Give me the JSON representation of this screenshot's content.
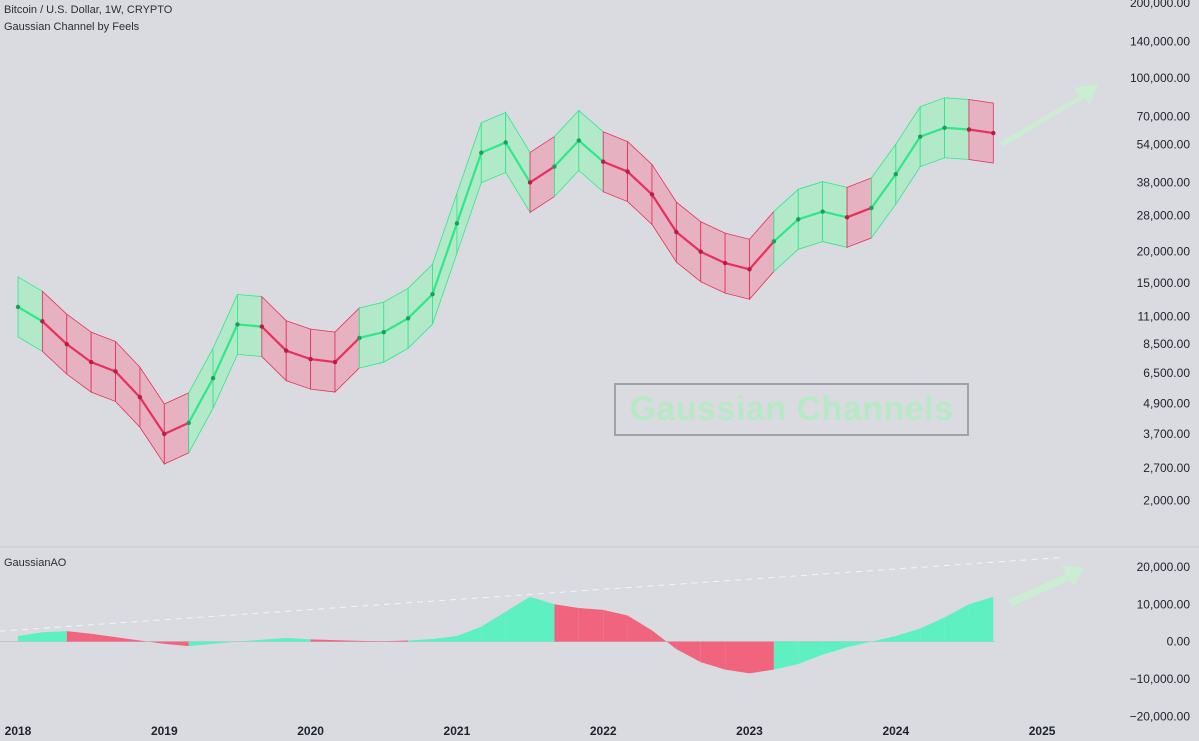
{
  "header": {
    "symbol_line": "Bitcoin / U.S. Dollar, 1W, CRYPTO",
    "indicator_line": "Gaussian Channel by Feels"
  },
  "watermark": "Gaussian Channels",
  "colors": {
    "background": "#dadbe1",
    "bull": "#2ee88a",
    "bear": "#e8305a",
    "bull_fill": "#a9ebc4",
    "bear_fill": "#e7a9bb",
    "ao_bull": "#5ff0c2",
    "ao_bear": "#f0647e",
    "arrow": "#c9f0d2"
  },
  "chart_data": [
    {
      "type": "line",
      "title": "Bitcoin / U.S. Dollar, 1W, CRYPTO",
      "subtitle": "Gaussian Channel by Feels",
      "scale": "log",
      "y_ticks": [
        "200,000.00",
        "140,000.00",
        "100,000.00",
        "70,000.00",
        "54,000.00",
        "38,000.00",
        "28,000.00",
        "20,000.00",
        "15,000.00",
        "11,000.00",
        "8,500.00",
        "6,500.00",
        "4,900.00",
        "3,700.00",
        "2,700.00",
        "2,000.00"
      ],
      "y_tick_values": [
        200000,
        140000,
        100000,
        70000,
        54000,
        38000,
        28000,
        20000,
        15000,
        11000,
        8500,
        6500,
        4900,
        3700,
        2700,
        2000
      ],
      "x_ticks": [
        "2018",
        "2019",
        "2020",
        "2021",
        "2022",
        "2023",
        "2024",
        "2025"
      ],
      "ylim": [
        1700,
        200000
      ],
      "series": [
        {
          "x": [
            "2018-01",
            "2018-03",
            "2018-05",
            "2018-07",
            "2018-09",
            "2018-11",
            "2019-01",
            "2019-03",
            "2019-05",
            "2019-07",
            "2019-09",
            "2019-11",
            "2020-01",
            "2020-03",
            "2020-05",
            "2020-07",
            "2020-09",
            "2020-11",
            "2021-01",
            "2021-03",
            "2021-05",
            "2021-07",
            "2021-09",
            "2021-11",
            "2022-01",
            "2022-03",
            "2022-05",
            "2022-07",
            "2022-09",
            "2022-11",
            "2023-01",
            "2023-03",
            "2023-05",
            "2023-07",
            "2023-09",
            "2023-11",
            "2024-01",
            "2024-03",
            "2024-05",
            "2024-07",
            "2024-09"
          ],
          "values": [
            12000,
            10500,
            8500,
            7200,
            6600,
            5200,
            3700,
            4100,
            6200,
            10200,
            10000,
            8000,
            7400,
            7200,
            9000,
            9500,
            10800,
            13500,
            26000,
            50000,
            55000,
            38000,
            44000,
            56000,
            46000,
            42000,
            34000,
            24000,
            20000,
            18000,
            17000,
            22000,
            27000,
            29000,
            27500,
            30000,
            41000,
            58000,
            63000,
            62000,
            60000
          ],
          "bull": [
            true,
            false,
            false,
            false,
            false,
            false,
            false,
            true,
            true,
            true,
            false,
            false,
            false,
            false,
            true,
            true,
            true,
            true,
            true,
            true,
            true,
            false,
            true,
            true,
            false,
            false,
            false,
            false,
            false,
            false,
            false,
            true,
            true,
            true,
            false,
            true,
            true,
            true,
            true,
            false,
            false
          ]
        }
      ]
    },
    {
      "type": "bar",
      "title": "GaussianAO",
      "y_ticks": [
        "20,000.00",
        "10,000.00",
        "0.00",
        "−10,000.00",
        "−20,000.00"
      ],
      "y_tick_values": [
        20000,
        10000,
        0,
        -10000,
        -20000
      ],
      "ylim": [
        -21000,
        24000
      ],
      "x": [
        "2018-01",
        "2018-03",
        "2018-05",
        "2018-07",
        "2018-09",
        "2018-11",
        "2019-01",
        "2019-03",
        "2019-05",
        "2019-07",
        "2019-09",
        "2019-11",
        "2020-01",
        "2020-03",
        "2020-05",
        "2020-07",
        "2020-09",
        "2020-11",
        "2021-01",
        "2021-03",
        "2021-05",
        "2021-07",
        "2021-09",
        "2021-11",
        "2022-01",
        "2022-03",
        "2022-05",
        "2022-07",
        "2022-09",
        "2022-11",
        "2023-01",
        "2023-03",
        "2023-05",
        "2023-07",
        "2023-09",
        "2023-11",
        "2024-01",
        "2024-03",
        "2024-05",
        "2024-07",
        "2024-09"
      ],
      "values": [
        1500,
        2500,
        2800,
        2100,
        1200,
        300,
        -600,
        -1200,
        -600,
        0,
        500,
        1000,
        600,
        400,
        200,
        100,
        300,
        700,
        1500,
        4000,
        8000,
        12000,
        10000,
        9000,
        8500,
        7000,
        3000,
        -2000,
        -5500,
        -7500,
        -8500,
        -7500,
        -6000,
        -3500,
        -1500,
        0,
        1500,
        3500,
        6500,
        10000,
        12000
      ],
      "bull": [
        true,
        true,
        false,
        false,
        false,
        false,
        false,
        true,
        true,
        true,
        true,
        true,
        false,
        false,
        false,
        false,
        true,
        true,
        true,
        true,
        true,
        true,
        false,
        false,
        false,
        false,
        false,
        false,
        false,
        false,
        false,
        true,
        true,
        true,
        true,
        true,
        true,
        true,
        true,
        true,
        true
      ]
    }
  ]
}
